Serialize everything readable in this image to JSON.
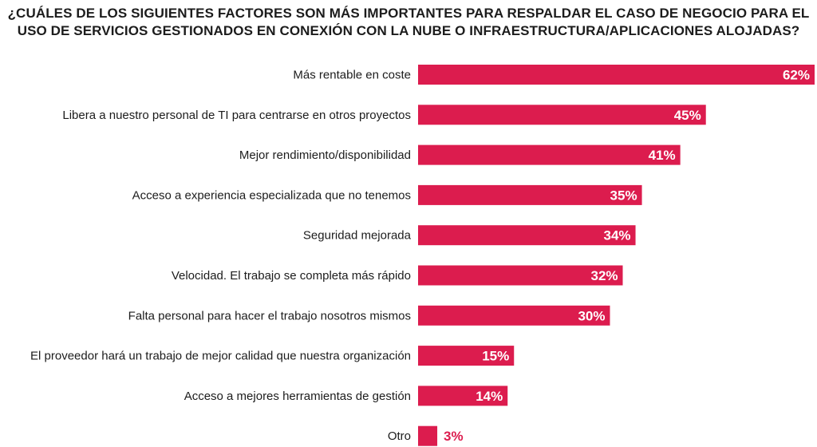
{
  "chart_data": {
    "type": "bar",
    "orientation": "horizontal",
    "title": "¿CUÁLES DE LOS SIGUIENTES FACTORES SON MÁS IMPORTANTES PARA RESPALDAR EL CASO DE NEGOCIO PARA EL USO DE SERVICIOS GESTIONADOS EN CONEXIÓN CON LA NUBE O INFRAESTRUCTURA/APLICACIONES ALOJADAS?",
    "categories": [
      "Más rentable en coste",
      "Libera a nuestro personal de TI para centrarse en otros proyectos",
      "Mejor rendimiento/disponibilidad",
      "Acceso a experiencia especializada que no tenemos",
      "Seguridad mejorada",
      "Velocidad. El trabajo se completa más rápido",
      "Falta personal para hacer el trabajo nosotros mismos",
      "El proveedor hará un trabajo de mejor calidad que nuestra organización",
      "Acceso a mejores herramientas de gestión",
      "Otro"
    ],
    "values": [
      62,
      45,
      41,
      35,
      34,
      32,
      30,
      15,
      14,
      3
    ],
    "value_labels": [
      "62%",
      "45%",
      "41%",
      "35%",
      "34%",
      "32%",
      "30%",
      "15%",
      "14%",
      "3%"
    ],
    "xlim": [
      0,
      62
    ],
    "grid": false,
    "legend": "none",
    "colors": {
      "bar": "#dc1c4e",
      "value_inside": "#ffffff",
      "value_outside": "#dc1c4e",
      "text": "#1c1c1c"
    }
  }
}
